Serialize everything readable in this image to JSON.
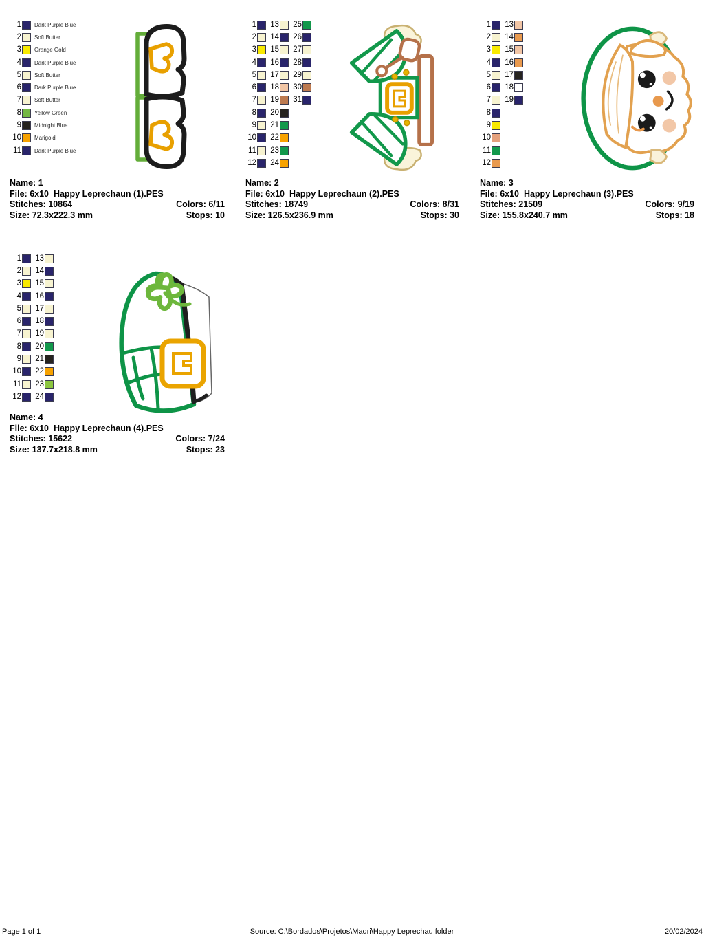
{
  "labels": {
    "name": "Name:",
    "file": "File:",
    "stitches": "Stitches:",
    "colors": "Colors:",
    "size": "Size:",
    "stops": "Stops:"
  },
  "footer": {
    "page_label": "Page 1 of 1",
    "source": "Source: C:\\Bordados\\Projetos\\Madri\\Happy Leprechau folder",
    "date": "20/02/2024"
  },
  "designs": [
    {
      "name": "1",
      "file": "6x10  Happy Leprechaun (1).PES",
      "stitches": "10864",
      "colors": "6/11",
      "size": "72.3x222.3 mm",
      "stops": "10",
      "thumbnail": "leprechaun-boots",
      "color_list": [
        {
          "n": "1",
          "hex": "#29246b",
          "label": "Dark Purple Blue"
        },
        {
          "n": "2",
          "hex": "#f7f3d0",
          "label": "Soft Butter"
        },
        {
          "n": "3",
          "hex": "#f8ea00",
          "label": "Orange Gold"
        },
        {
          "n": "4",
          "hex": "#29246b",
          "label": "Dark Purple Blue"
        },
        {
          "n": "5",
          "hex": "#f7f3d0",
          "label": "Soft Butter"
        },
        {
          "n": "6",
          "hex": "#29246b",
          "label": "Dark Purple Blue"
        },
        {
          "n": "7",
          "hex": "#f7f3d0",
          "label": "Soft Butter"
        },
        {
          "n": "8",
          "hex": "#74b843",
          "label": "Yellow Green"
        },
        {
          "n": "9",
          "hex": "#26231f",
          "label": "Midnight Blue"
        },
        {
          "n": "10",
          "hex": "#f7a200",
          "label": "Marigold"
        },
        {
          "n": "11",
          "hex": "#29246b",
          "label": "Dark Purple Blue"
        }
      ]
    },
    {
      "name": "2",
      "file": "6x10  Happy Leprechaun (2).PES",
      "stitches": "18749",
      "colors": "8/31",
      "size": "126.5x236.9 mm",
      "stops": "30",
      "thumbnail": "leprechaun-body-with-pipe",
      "color_list": [
        {
          "n": "1",
          "hex": "#29246b"
        },
        {
          "n": "2",
          "hex": "#f7f3d0"
        },
        {
          "n": "3",
          "hex": "#f8ea00"
        },
        {
          "n": "4",
          "hex": "#29246b"
        },
        {
          "n": "5",
          "hex": "#f7f3d0"
        },
        {
          "n": "6",
          "hex": "#29246b"
        },
        {
          "n": "7",
          "hex": "#f7f3d0"
        },
        {
          "n": "8",
          "hex": "#29246b"
        },
        {
          "n": "9",
          "hex": "#f7f3d0"
        },
        {
          "n": "10",
          "hex": "#29246b"
        },
        {
          "n": "11",
          "hex": "#f7f3d0"
        },
        {
          "n": "12",
          "hex": "#29246b"
        },
        {
          "n": "13",
          "hex": "#f7f3d0"
        },
        {
          "n": "14",
          "hex": "#29246b"
        },
        {
          "n": "15",
          "hex": "#f7f3d0"
        },
        {
          "n": "16",
          "hex": "#29246b"
        },
        {
          "n": "17",
          "hex": "#f7f3d0"
        },
        {
          "n": "18",
          "hex": "#f1c5a5"
        },
        {
          "n": "19",
          "hex": "#bd7a50"
        },
        {
          "n": "20",
          "hex": "#26231f"
        },
        {
          "n": "21",
          "hex": "#12984b"
        },
        {
          "n": "22",
          "hex": "#f7a200"
        },
        {
          "n": "23",
          "hex": "#12984b"
        },
        {
          "n": "24",
          "hex": "#f7a200"
        },
        {
          "n": "25",
          "hex": "#12984b"
        },
        {
          "n": "26",
          "hex": "#29246b"
        },
        {
          "n": "27",
          "hex": "#f7f3d0"
        },
        {
          "n": "28",
          "hex": "#29246b"
        },
        {
          "n": "29",
          "hex": "#f7f3d0"
        },
        {
          "n": "30",
          "hex": "#bd7a50"
        },
        {
          "n": "31",
          "hex": "#29246b"
        }
      ]
    },
    {
      "name": "3",
      "file": "6x10  Happy Leprechaun (3).PES",
      "stitches": "21509",
      "colors": "9/19",
      "size": "155.8x240.7 mm",
      "stops": "18",
      "thumbnail": "leprechaun-face",
      "color_list": [
        {
          "n": "1",
          "hex": "#29246b"
        },
        {
          "n": "2",
          "hex": "#f7f3d0"
        },
        {
          "n": "3",
          "hex": "#f8ea00"
        },
        {
          "n": "4",
          "hex": "#29246b"
        },
        {
          "n": "5",
          "hex": "#f7f3d0"
        },
        {
          "n": "6",
          "hex": "#29246b"
        },
        {
          "n": "7",
          "hex": "#f7f3d0"
        },
        {
          "n": "8",
          "hex": "#29246b"
        },
        {
          "n": "9",
          "hex": "#f8ea00"
        },
        {
          "n": "10",
          "hex": "#e4a07c"
        },
        {
          "n": "11",
          "hex": "#12984b"
        },
        {
          "n": "12",
          "hex": "#e99a4e"
        },
        {
          "n": "13",
          "hex": "#f1c5a5"
        },
        {
          "n": "14",
          "hex": "#e99a4e"
        },
        {
          "n": "15",
          "hex": "#f1c5a5"
        },
        {
          "n": "16",
          "hex": "#e99a4e"
        },
        {
          "n": "17",
          "hex": "#26231f"
        },
        {
          "n": "18",
          "hex": "#ffffff"
        },
        {
          "n": "19",
          "hex": "#29246b"
        }
      ]
    },
    {
      "name": "4",
      "file": "6x10  Happy Leprechaun (4).PES",
      "stitches": "15622",
      "colors": "7/24",
      "size": "137.7x218.8 mm",
      "stops": "23",
      "thumbnail": "leprechaun-hat-with-shamrock",
      "color_list": [
        {
          "n": "1",
          "hex": "#29246b"
        },
        {
          "n": "2",
          "hex": "#f7f3d0"
        },
        {
          "n": "3",
          "hex": "#f8ea00"
        },
        {
          "n": "4",
          "hex": "#29246b"
        },
        {
          "n": "5",
          "hex": "#f7f3d0"
        },
        {
          "n": "6",
          "hex": "#29246b"
        },
        {
          "n": "7",
          "hex": "#f7f3d0"
        },
        {
          "n": "8",
          "hex": "#29246b"
        },
        {
          "n": "9",
          "hex": "#f7f3d0"
        },
        {
          "n": "10",
          "hex": "#29246b"
        },
        {
          "n": "11",
          "hex": "#f7f3d0"
        },
        {
          "n": "12",
          "hex": "#29246b"
        },
        {
          "n": "13",
          "hex": "#f7f3d0"
        },
        {
          "n": "14",
          "hex": "#29246b"
        },
        {
          "n": "15",
          "hex": "#f7f3d0"
        },
        {
          "n": "16",
          "hex": "#29246b"
        },
        {
          "n": "17",
          "hex": "#f7f3d0"
        },
        {
          "n": "18",
          "hex": "#29246b"
        },
        {
          "n": "19",
          "hex": "#f7f3d0"
        },
        {
          "n": "20",
          "hex": "#12984b"
        },
        {
          "n": "21",
          "hex": "#26231f"
        },
        {
          "n": "22",
          "hex": "#f7a200"
        },
        {
          "n": "23",
          "hex": "#8cc63f"
        },
        {
          "n": "24",
          "hex": "#29246b"
        }
      ]
    }
  ]
}
